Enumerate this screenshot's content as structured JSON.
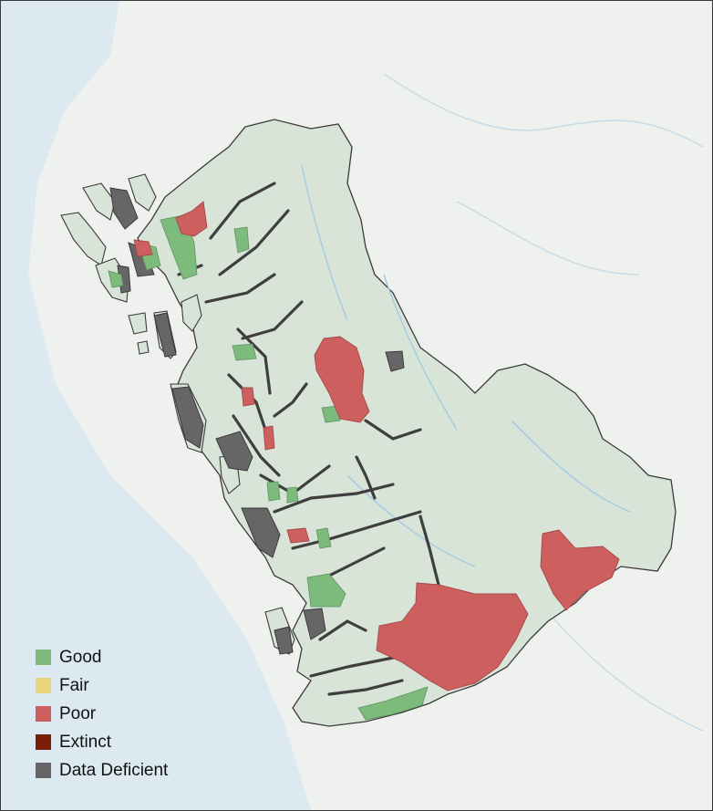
{
  "legend": {
    "items": [
      {
        "label": "Good",
        "color": "#7dbb7d"
      },
      {
        "label": "Fair",
        "color": "#e5d57c"
      },
      {
        "label": "Poor",
        "color": "#cd5f5f"
      },
      {
        "label": "Extinct",
        "color": "#7a1e07"
      },
      {
        "label": "Data Deficient",
        "color": "#666666"
      }
    ]
  },
  "colors": {
    "ocean": "#dde9f1",
    "land_background": "#eef1ee",
    "region_fill": "#d9e4d8",
    "outline": "#3a3a3a",
    "river": "#9fc6de"
  }
}
